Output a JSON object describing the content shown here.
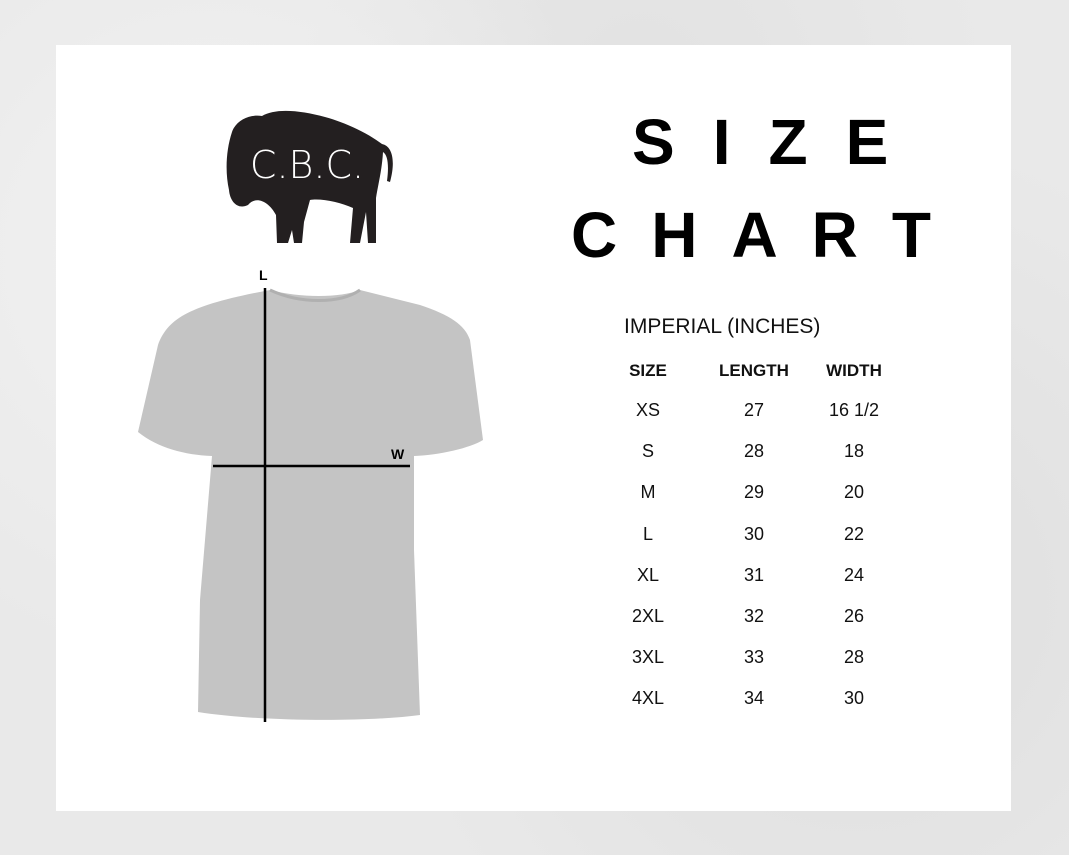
{
  "logo": {
    "text": "C.B.C.",
    "icon": "bison-icon"
  },
  "title": {
    "line1": "SIZE",
    "line2": "CHART"
  },
  "diagram": {
    "length_label": "L",
    "width_label": "W",
    "shirt_color": "#c4c4c4"
  },
  "table": {
    "subtitle": "IMPERIAL (INCHES)",
    "headers": [
      "SIZE",
      "LENGTH",
      "WIDTH"
    ],
    "rows": [
      [
        "XS",
        "27",
        "16 1/2"
      ],
      [
        "S",
        "28",
        "18"
      ],
      [
        "M",
        "29",
        "20"
      ],
      [
        "L",
        "30",
        "22"
      ],
      [
        "XL",
        "31",
        "24"
      ],
      [
        "2XL",
        "32",
        "26"
      ],
      [
        "3XL",
        "33",
        "28"
      ],
      [
        "4XL",
        "34",
        "30"
      ]
    ]
  }
}
